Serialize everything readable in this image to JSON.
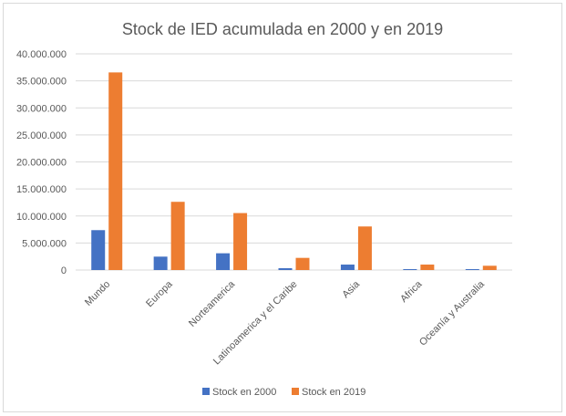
{
  "chart_data": {
    "type": "bar",
    "title": "Stock de IED acumulada en 2000 y en 2019",
    "xlabel": "",
    "ylabel": "",
    "categories": [
      "Mundo",
      "Europa",
      "Norteamerica",
      "Latinoamerica y el Caribe",
      "Asia",
      "Africa",
      "Oceanía y Australia"
    ],
    "series": [
      {
        "name": "Stock en 2000",
        "color": "#4472c4",
        "values": [
          7380000,
          2480000,
          3100000,
          340000,
          1010000,
          170000,
          170000
        ]
      },
      {
        "name": "Stock en 2019",
        "color": "#ed7d31",
        "values": [
          36560000,
          12620000,
          10540000,
          2250000,
          8060000,
          1010000,
          790000
        ]
      }
    ],
    "ylim": [
      0,
      40000000
    ],
    "yticks": [
      0,
      5000000,
      10000000,
      15000000,
      20000000,
      25000000,
      30000000,
      35000000,
      40000000
    ],
    "ytick_labels": [
      "0",
      "5.000.000",
      "10.000.000",
      "15.000.000",
      "20.000.000",
      "25.000.000",
      "30.000.000",
      "35.000.000",
      "40.000.000"
    ],
    "grid": true,
    "legend_position": "bottom"
  }
}
